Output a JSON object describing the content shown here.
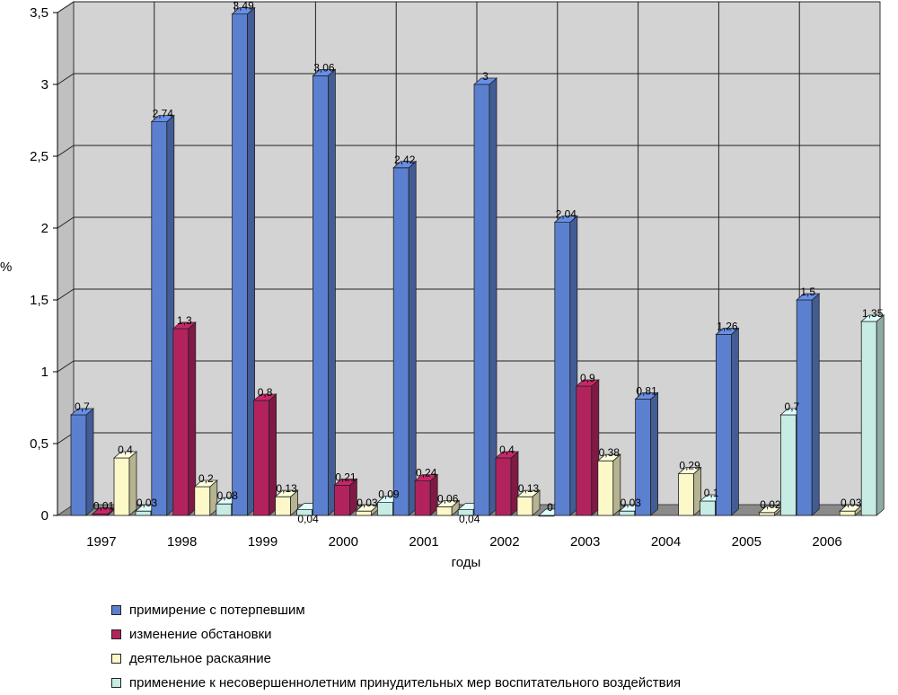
{
  "chart_data": {
    "type": "bar",
    "ylabel": "%",
    "xlabel": "годы",
    "ylim": [
      0,
      3.5
    ],
    "y_ticks": [
      "0",
      "0,5",
      "1",
      "1,5",
      "2",
      "2,5",
      "3",
      "3,5"
    ],
    "y_tick_values": [
      0,
      0.5,
      1,
      1.5,
      2,
      2.5,
      3,
      3.5
    ],
    "categories": [
      "1997",
      "1998",
      "1999",
      "2000",
      "2001",
      "2002",
      "2003",
      "2004",
      "2005",
      "2006"
    ],
    "grid": true,
    "legend_position": "bottom",
    "series": [
      {
        "name": "примирение с потерпевшим",
        "color": "#5b80cf",
        "values": [
          0.7,
          2.74,
          3.49,
          3.06,
          2.42,
          3,
          2.04,
          0.81,
          1.26,
          1.5
        ],
        "labels": [
          "0,7",
          "2,74",
          "3,49",
          "3,06",
          "2,42",
          "3",
          "2,04",
          "0,81",
          "1,26",
          "1,5"
        ]
      },
      {
        "name": "изменение обстановки",
        "color": "#b2235e",
        "values": [
          0.01,
          1.3,
          0.8,
          0.21,
          0.24,
          0.4,
          0.9,
          null,
          null,
          null
        ],
        "labels": [
          "0,01",
          "1,3",
          "0,8",
          "0,21",
          "0,24",
          "0,4",
          "0,9",
          "",
          "",
          ""
        ]
      },
      {
        "name": "деятельное раскаяние",
        "color": "#fdf8c8",
        "values": [
          0.4,
          0.2,
          0.13,
          0.03,
          0.06,
          0.13,
          0.38,
          0.29,
          0.02,
          0.03
        ],
        "labels": [
          "0,4",
          "0,2",
          "0,13",
          "0,03",
          "0,06",
          "0,13",
          "0,38",
          "0,29",
          "0,02",
          "0,03"
        ]
      },
      {
        "name": "применение к несовершеннолетним принудительных мер воспитательного воздействия",
        "color": "#c6ece4",
        "values": [
          0.03,
          0.08,
          0.04,
          0.09,
          0.04,
          0,
          0.03,
          0.1,
          0.7,
          1.35
        ],
        "labels": [
          "0,03",
          "0,08",
          "0,04",
          "0,09",
          "0,04",
          "0",
          "0,03",
          "0,1",
          "0,7",
          "1,35"
        ]
      }
    ]
  }
}
